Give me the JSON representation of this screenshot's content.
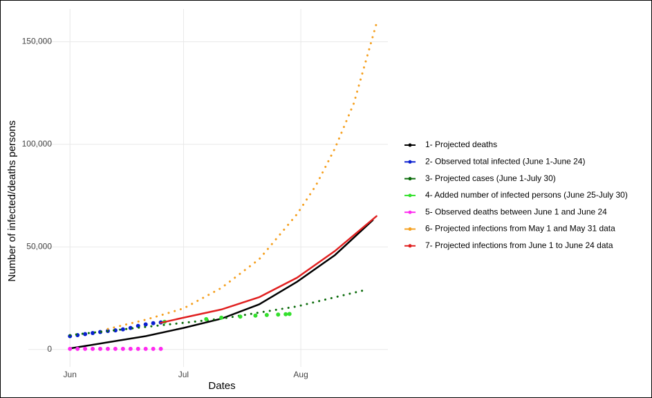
{
  "chart_data": {
    "type": "line",
    "xlabel": "Dates",
    "ylabel": "Number of infected/deaths persons",
    "xlim": [
      -11,
      84
    ],
    "xticks": [
      {
        "value": 0,
        "label": "Jun"
      },
      {
        "value": 30,
        "label": "Jul"
      },
      {
        "value": 61,
        "label": "Aug"
      }
    ],
    "ylim": [
      -8500,
      166000
    ],
    "yticks": [
      0,
      {
        "value": 50000,
        "label": "50,000"
      },
      {
        "value": 100000,
        "label": "100,000"
      },
      {
        "value": 150000,
        "label": "150,000"
      }
    ],
    "grid": true,
    "legend": "right",
    "series": [
      {
        "name": "1- Projected deaths",
        "color": "#000000",
        "style": "line",
        "x": [
          0,
          10,
          20,
          30,
          40,
          50,
          60,
          70,
          80
        ],
        "values": [
          500,
          3500,
          6500,
          10500,
          15000,
          22000,
          33000,
          46000,
          63000
        ]
      },
      {
        "name": "2- Observed total infected (June 1-June 24)",
        "color": "#0a1fcf",
        "style": "points",
        "x": [
          0,
          2,
          4,
          6,
          8,
          10,
          12,
          14,
          16,
          18,
          20,
          22,
          24
        ],
        "values": [
          6500,
          7000,
          7500,
          8000,
          8500,
          9000,
          9300,
          9800,
          10500,
          11500,
          12200,
          12800,
          13200
        ]
      },
      {
        "name": "3- Projected cases (June 1-July 30)",
        "color": "#0b6b0b",
        "style": "dotted",
        "x": [
          0,
          20,
          40,
          60,
          78
        ],
        "values": [
          7000,
          11000,
          15000,
          21000,
          29000
        ]
      },
      {
        "name": "4- Added number of infected persons (June 25-July 30)",
        "color": "#33e02c",
        "style": "points",
        "x": [
          25,
          36,
          40,
          45,
          49,
          52,
          55,
          57,
          58
        ],
        "values": [
          13500,
          14800,
          15500,
          16000,
          16500,
          16800,
          17000,
          17200,
          17300
        ]
      },
      {
        "name": "5- Observed deaths between June 1 and June 24",
        "color": "#ff2bf0",
        "style": "points",
        "x": [
          0,
          2,
          4,
          6,
          8,
          10,
          12,
          14,
          16,
          18,
          20,
          22,
          24
        ],
        "values": [
          300,
          300,
          300,
          300,
          300,
          300,
          300,
          300,
          300,
          300,
          300,
          300,
          300
        ]
      },
      {
        "name": "6- Projected infections from May 1 and May 31 data",
        "color": "#f5a020",
        "style": "dotted",
        "x": [
          10,
          20,
          30,
          40,
          50,
          60,
          65,
          70,
          75,
          81
        ],
        "values": [
          10000,
          14500,
          20000,
          30000,
          44000,
          66000,
          80000,
          98000,
          120000,
          159000
        ]
      },
      {
        "name": "7- Projected infections from June 1 to June 24 data",
        "color": "#e02020",
        "style": "line",
        "x": [
          24,
          30,
          40,
          50,
          60,
          70,
          81
        ],
        "values": [
          13000,
          15500,
          19500,
          25500,
          35000,
          48000,
          65000
        ]
      }
    ]
  }
}
